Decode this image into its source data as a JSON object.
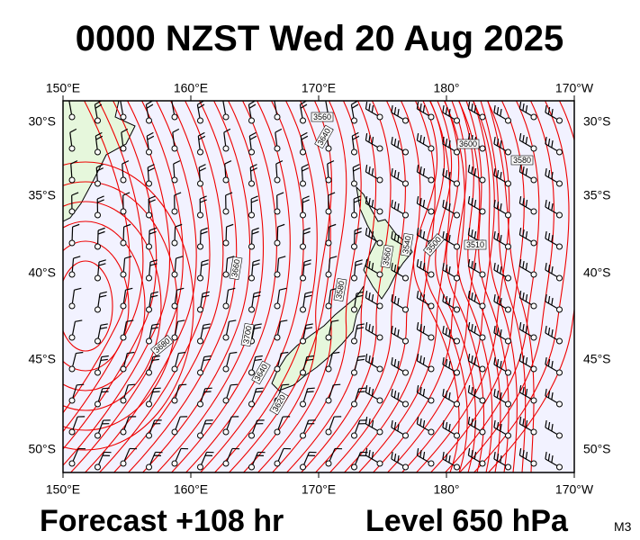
{
  "header": {
    "title": "0000 NZST Wed 20 Aug 2025"
  },
  "map": {
    "lon_labels": [
      "150°E",
      "160°E",
      "170°E",
      "180°",
      "170°W"
    ],
    "lat_labels": [
      "30°S",
      "35°S",
      "40°S",
      "45°S",
      "50°S"
    ],
    "contour_labels": [
      "3560",
      "3640",
      "3600",
      "3580",
      "3660",
      "3700",
      "3640",
      "3680",
      "3620",
      "3580",
      "3560",
      "3540",
      "3500",
      "3510"
    ]
  },
  "footer": {
    "forecast": "Forecast +108 hr",
    "level": "Level 650 hPa",
    "model": "M3"
  }
}
